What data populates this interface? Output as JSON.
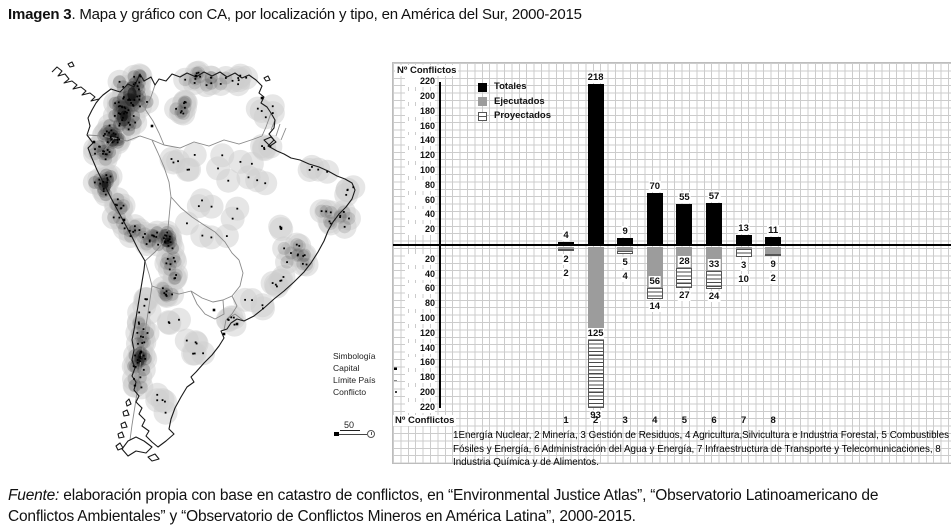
{
  "page": {
    "title_label": "Imagen 3",
    "title_rest": ". Mapa y gráfico con CA, por localización y tipo, en América del Sur, 2000-2015",
    "source_label": "Fuente:",
    "source_text": " elaboración propia con base en catastro de conflictos, en “Environmental Justice Atlas”, “Observatorio Latinoamericano de Conflictos Ambientales” y “Observatorio de Conflictos Mineros en América Latina”, 2000-2015."
  },
  "map": {
    "legend": {
      "title": "Simbología",
      "capital": "Capital",
      "limite": "Límite País",
      "conflicto": "Conflicto"
    },
    "scale_label": "50",
    "seed": 987654321,
    "colors": {
      "buffer": "#cdcdcd",
      "dark_overlay": "#3c3c3c",
      "dot": "#000000",
      "border": "#8a8a8a",
      "coast": "#1a1a1a"
    },
    "clusters": [
      [
        104,
        44,
        11,
        16,
        26,
        2
      ],
      [
        96,
        66,
        9,
        13,
        22,
        2
      ],
      [
        85,
        88,
        8,
        11,
        16,
        2
      ],
      [
        73,
        103,
        7,
        9,
        12,
        1
      ],
      [
        77,
        135,
        8,
        9,
        12,
        2
      ],
      [
        89,
        158,
        7,
        8,
        8,
        1
      ],
      [
        103,
        180,
        7,
        7,
        8,
        1
      ],
      [
        121,
        188,
        8,
        6,
        9,
        1
      ],
      [
        139,
        191,
        8,
        8,
        13,
        2
      ],
      [
        144,
        219,
        6,
        9,
        9,
        1
      ],
      [
        140,
        244,
        6,
        7,
        7,
        1
      ],
      [
        116,
        258,
        4,
        10,
        6,
        0
      ],
      [
        114,
        284,
        5,
        12,
        9,
        1
      ],
      [
        112,
        308,
        6,
        11,
        15,
        2
      ],
      [
        108,
        333,
        5,
        7,
        5,
        1
      ],
      [
        152,
        57,
        8,
        8,
        8,
        1
      ],
      [
        172,
        30,
        22,
        6,
        12,
        1
      ],
      [
        210,
        29,
        12,
        5,
        6,
        0
      ],
      [
        237,
        57,
        7,
        9,
        5,
        0
      ],
      [
        242,
        94,
        8,
        5,
        4,
        0
      ],
      [
        310,
        170,
        13,
        11,
        10,
        1
      ],
      [
        321,
        141,
        7,
        7,
        4,
        0
      ],
      [
        269,
        205,
        12,
        11,
        11,
        1
      ],
      [
        247,
        234,
        9,
        7,
        6,
        0
      ],
      [
        227,
        254,
        8,
        5,
        4,
        0
      ],
      [
        203,
        271,
        8,
        5,
        5,
        0
      ],
      [
        185,
        165,
        28,
        22,
        9,
        0
      ],
      [
        215,
        125,
        30,
        18,
        8,
        0
      ],
      [
        160,
        120,
        18,
        16,
        6,
        0
      ],
      [
        162,
        292,
        14,
        18,
        6,
        0
      ],
      [
        136,
        352,
        9,
        16,
        5,
        0
      ],
      [
        290,
        122,
        9,
        7,
        4,
        0
      ],
      [
        253,
        178,
        3,
        3,
        2,
        0
      ],
      [
        146,
        272,
        6,
        6,
        3,
        0
      ]
    ],
    "capitals": [
      [
        124,
        76
      ],
      [
        168,
        26
      ],
      [
        66,
        92
      ],
      [
        96,
        170
      ],
      [
        137,
        192
      ],
      [
        113,
        302
      ],
      [
        196,
        284
      ],
      [
        209,
        274
      ],
      [
        186,
        260
      ],
      [
        253,
        178
      ],
      [
        234,
        48
      ]
    ]
  },
  "chart_data": {
    "type": "bar",
    "subtype": "mirrored-total-vs-stacked",
    "title_top": "Nº Conflictos",
    "title_bottom": "Nº Conflictos",
    "categories": [
      "1",
      "2",
      "3",
      "4",
      "5",
      "6",
      "7",
      "8"
    ],
    "series": [
      {
        "name": "Totales",
        "style": "s-total",
        "direction": "up",
        "values": [
          4,
          218,
          9,
          70,
          55,
          57,
          13,
          11
        ]
      },
      {
        "name": "Ejecutados",
        "style": "s-eje",
        "direction": "down",
        "values": [
          2,
          125,
          5,
          56,
          28,
          33,
          3,
          9
        ]
      },
      {
        "name": "Proyectados",
        "style": "s-proy",
        "direction": "down",
        "values": [
          2,
          93,
          4,
          14,
          27,
          24,
          10,
          2
        ]
      }
    ],
    "y_axis": {
      "max": 220,
      "step": 20,
      "mirrored": true
    },
    "grid": true,
    "legend_position": "top-left-inside",
    "footnote": "1Energía Nuclear, 2 Minería, 3 Gestión de Residuos, 4 Agricultura,Silvicultura e Industria Forestal, 5 Combustibles Fósiles y Energía, 6 Administración del Agua y Energía, 7  Infraestructura de Transporte y Telecomunicaciones, 8 Industria Química y de Alimentos."
  }
}
